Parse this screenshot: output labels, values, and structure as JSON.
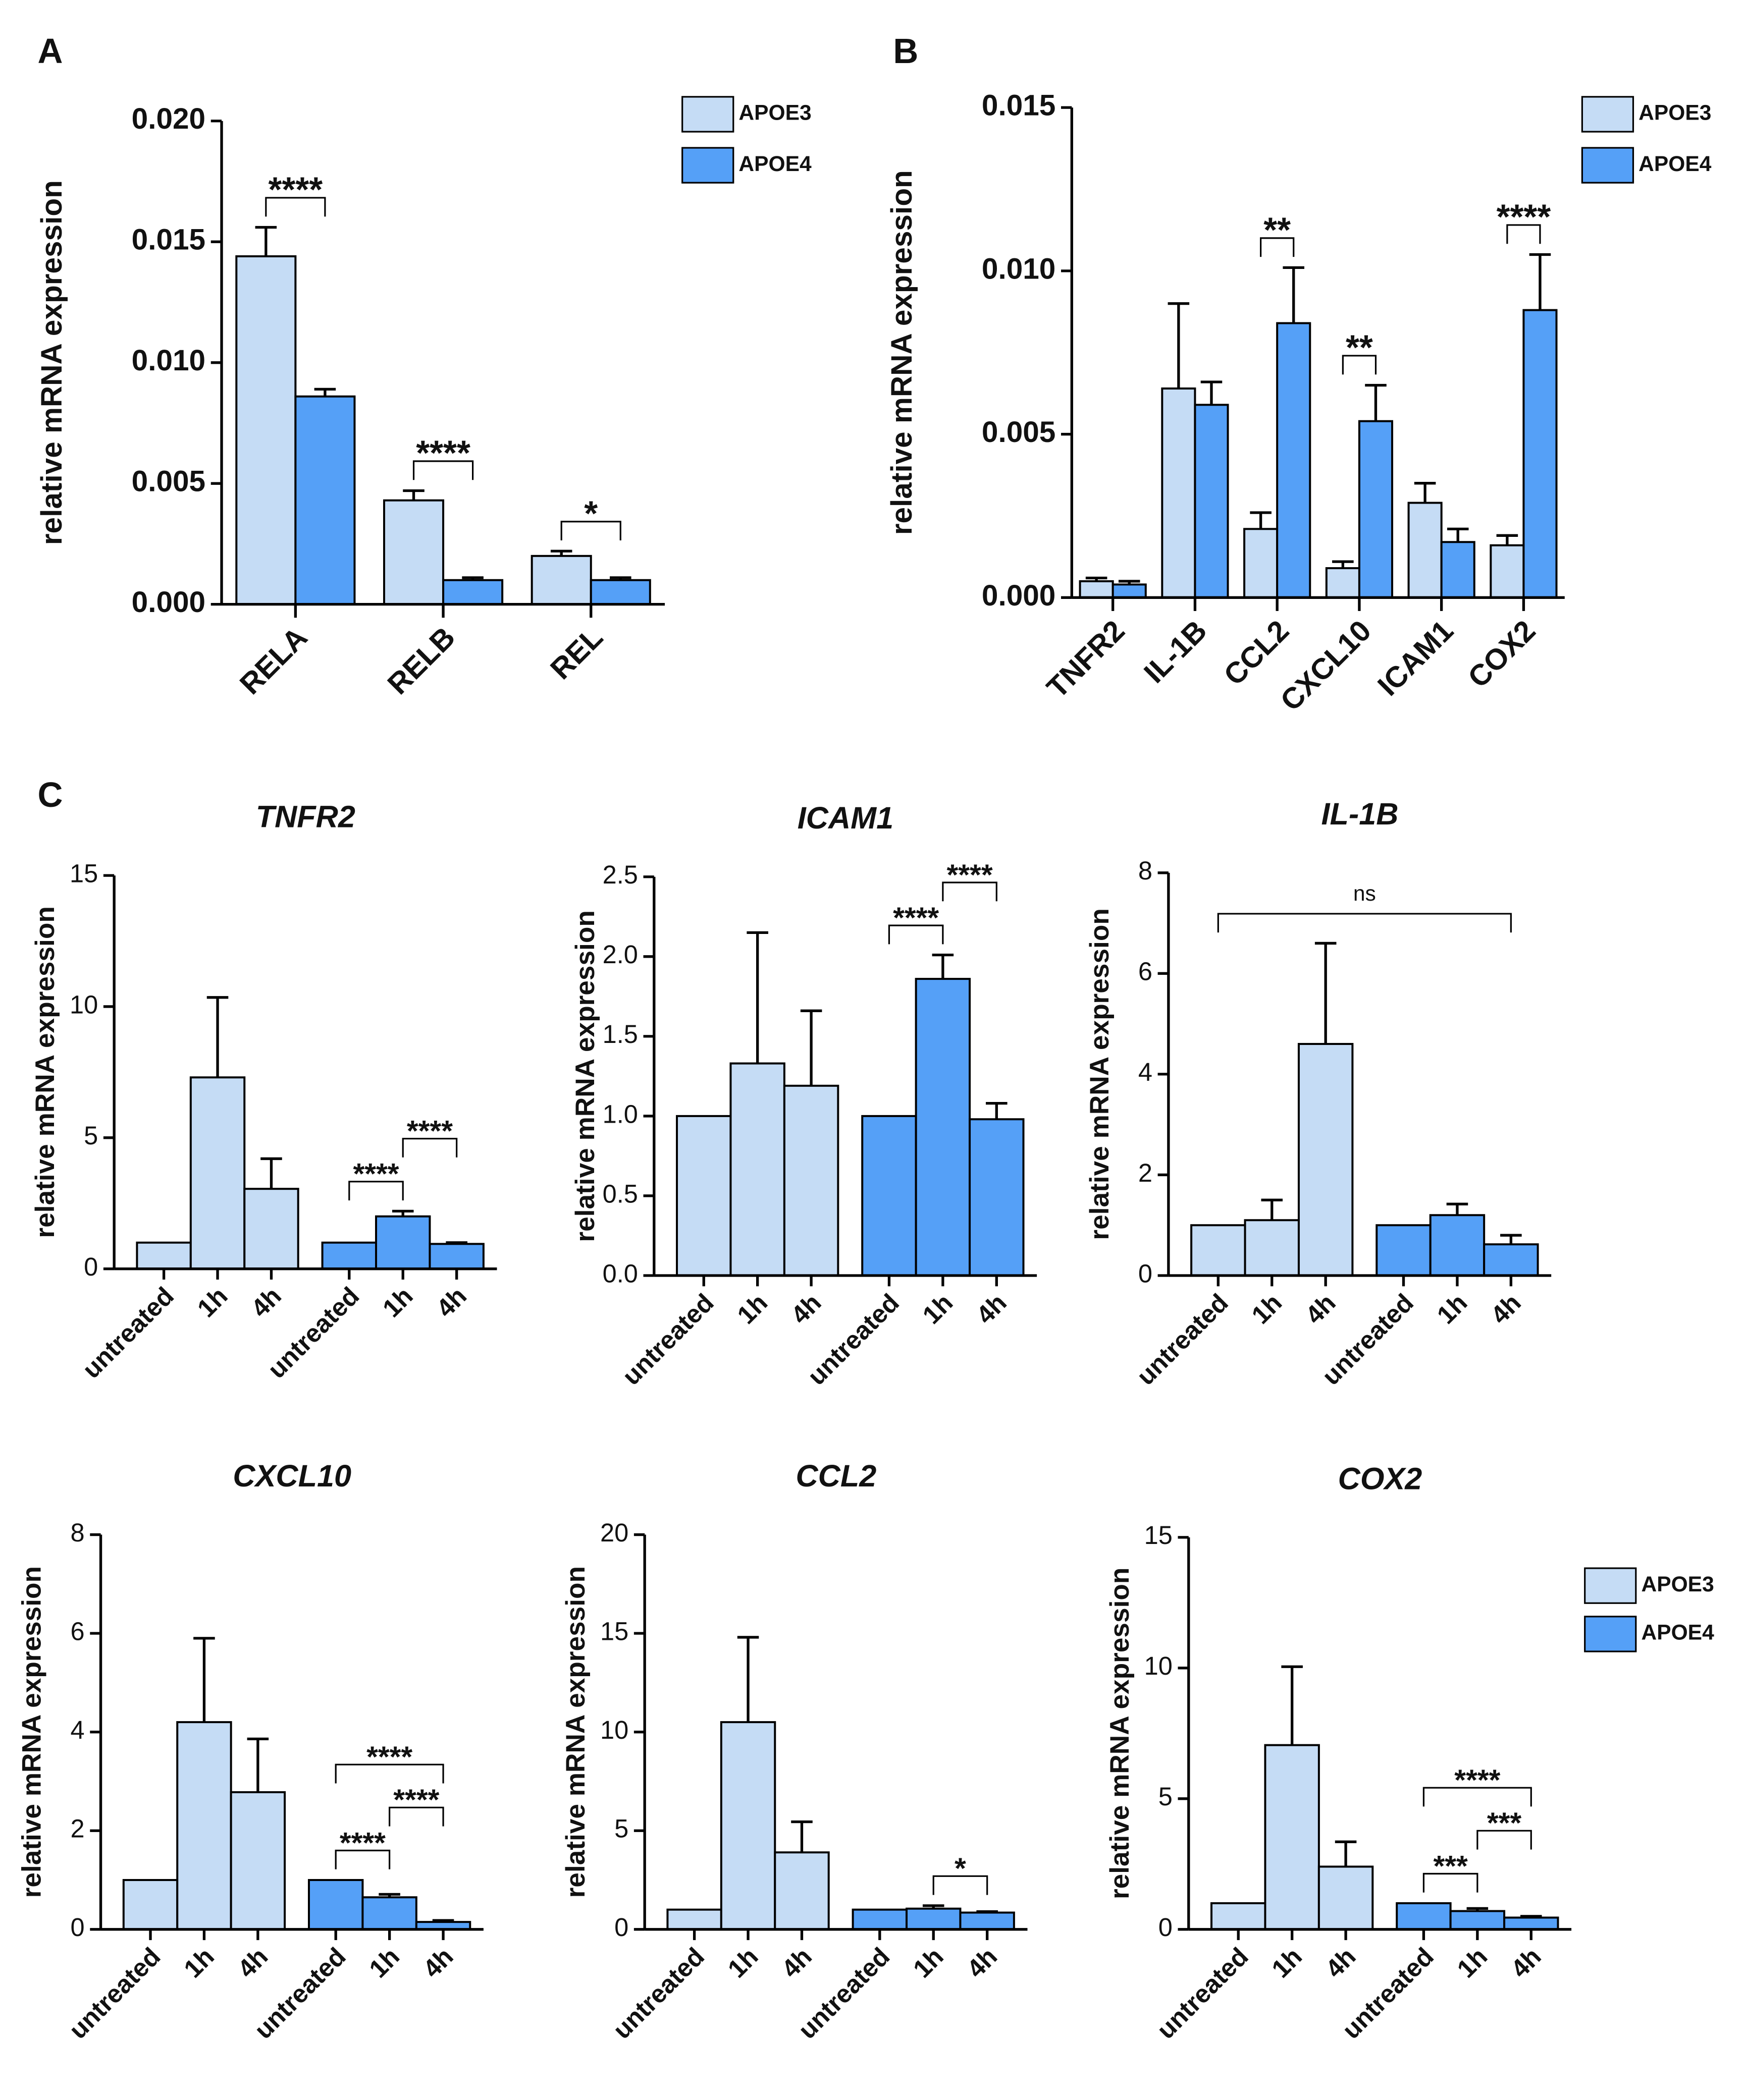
{
  "chart_data": [
    {
      "type": "grouped",
      "panel": "A",
      "ylabel": "relative mRNA expression",
      "categories": [
        "RELA",
        "RELB",
        "REL"
      ],
      "series": [
        {
          "name": "APOE3",
          "color": "#c5dcf5",
          "values": [
            0.0144,
            0.0043,
            0.002
          ],
          "errors": [
            0.0012,
            0.0004,
            0.0002
          ]
        },
        {
          "name": "APOE4",
          "color": "#55a0f7",
          "values": [
            0.0086,
            0.001,
            0.001
          ],
          "errors": [
            0.0003,
            0.0001,
            0.0001
          ]
        }
      ],
      "ylim": [
        0,
        0.02
      ],
      "yticks": [
        {
          "value": 0,
          "label": "0.000"
        },
        {
          "value": 0.005,
          "label": "0.005"
        },
        {
          "value": 0.01,
          "label": "0.010"
        },
        {
          "value": 0.015,
          "label": "0.015"
        },
        {
          "value": 0.02,
          "label": "0.020"
        }
      ],
      "annotations": [
        {
          "label": "****",
          "between": [
            0,
            1
          ]
        },
        {
          "label": "****",
          "between": [
            2,
            3
          ]
        },
        {
          "label": "*",
          "between": [
            4,
            5
          ]
        }
      ]
    },
    {
      "type": "grouped",
      "panel": "B",
      "ylabel": "relative mRNA expression",
      "categories": [
        "TNFR2",
        "IL-1B",
        "CCL2",
        "CXCL10",
        "ICAM1",
        "COX2"
      ],
      "series": [
        {
          "name": "APOE3",
          "color": "#c5dcf5",
          "values": [
            0.0005,
            0.0064,
            0.0021,
            0.0009,
            0.0029,
            0.0016
          ],
          "errors": [
            0.0001,
            0.0026,
            0.0005,
            0.0002,
            0.0006,
            0.0003
          ]
        },
        {
          "name": "APOE4",
          "color": "#55a0f7",
          "values": [
            0.0004,
            0.0059,
            0.0084,
            0.0054,
            0.0017,
            0.0088
          ],
          "errors": [
            0.0001,
            0.0007,
            0.0017,
            0.0011,
            0.0004,
            0.0017
          ]
        }
      ],
      "ylim": [
        0,
        0.015
      ],
      "yticks": [
        {
          "value": 0,
          "label": "0.000"
        },
        {
          "value": 0.005,
          "label": "0.005"
        },
        {
          "value": 0.01,
          "label": "0.010"
        },
        {
          "value": 0.015,
          "label": "0.015"
        }
      ],
      "annotations": [
        {
          "label": "**",
          "between": [
            4,
            5
          ]
        },
        {
          "label": "**",
          "between": [
            6,
            7
          ]
        },
        {
          "label": "****",
          "between": [
            10,
            11
          ]
        }
      ]
    },
    {
      "type": "bar",
      "panel": "C",
      "title": "TNFR2",
      "ylabel": "relative mRNA expression",
      "categories": [
        "untreated",
        "1h",
        "4h",
        "untreated",
        "1h",
        "4h"
      ],
      "values": [
        1,
        7.3,
        3.05,
        1,
        2.0,
        0.95
      ],
      "errors": [
        0,
        3.05,
        1.15,
        0,
        0.2,
        0.05
      ],
      "colors": [
        "#c5dcf5",
        "#c5dcf5",
        "#c5dcf5",
        "#55a0f7",
        "#55a0f7",
        "#55a0f7"
      ],
      "ylim": [
        0,
        15
      ],
      "yticks": [
        0,
        5,
        10,
        15
      ],
      "annotations": [
        {
          "label": "****",
          "between": [
            3,
            4
          ]
        },
        {
          "label": "****",
          "between": [
            4,
            5
          ]
        }
      ]
    },
    {
      "type": "bar",
      "title": "ICAM1",
      "ylabel": "relative mRNA expression",
      "categories": [
        "untreated",
        "1h",
        "4h",
        "untreated",
        "1h",
        "4h"
      ],
      "values": [
        1,
        1.33,
        1.19,
        1,
        1.86,
        0.98
      ],
      "errors": [
        0,
        0.82,
        0.47,
        0,
        0.15,
        0.1
      ],
      "colors": [
        "#c5dcf5",
        "#c5dcf5",
        "#c5dcf5",
        "#55a0f7",
        "#55a0f7",
        "#55a0f7"
      ],
      "ylim": [
        0,
        2.5
      ],
      "yticks": [
        {
          "value": 0,
          "label": "0.0"
        },
        0.5,
        {
          "value": 1,
          "label": "1.0"
        },
        1.5,
        {
          "value": 2,
          "label": "2.0"
        },
        2.5
      ],
      "annotations": [
        {
          "label": "****",
          "between": [
            3,
            4
          ]
        },
        {
          "label": "****",
          "between": [
            4,
            5
          ]
        }
      ]
    },
    {
      "type": "bar",
      "title": "IL-1B",
      "ylabel": "relative mRNA expression",
      "categories": [
        "untreated",
        "1h",
        "4h",
        "untreated",
        "1h",
        "4h"
      ],
      "values": [
        1,
        1.1,
        4.6,
        1,
        1.2,
        0.62
      ],
      "errors": [
        0,
        0.4,
        2.0,
        0,
        0.22,
        0.18
      ],
      "colors": [
        "#c5dcf5",
        "#c5dcf5",
        "#c5dcf5",
        "#55a0f7",
        "#55a0f7",
        "#55a0f7"
      ],
      "ylim": [
        0,
        8
      ],
      "yticks": [
        0,
        2,
        4,
        6,
        8
      ],
      "annotations": [
        {
          "label": "ns",
          "between": [
            0,
            5
          ]
        }
      ]
    },
    {
      "type": "bar",
      "title": "CXCL10",
      "ylabel": "relative mRNA expression",
      "categories": [
        "untreated",
        "1h",
        "4h",
        "untreated",
        "1h",
        "4h"
      ],
      "values": [
        1,
        4.2,
        2.78,
        1,
        0.65,
        0.15
      ],
      "errors": [
        0,
        1.7,
        1.08,
        0,
        0.06,
        0.03
      ],
      "colors": [
        "#c5dcf5",
        "#c5dcf5",
        "#c5dcf5",
        "#55a0f7",
        "#55a0f7",
        "#55a0f7"
      ],
      "ylim": [
        0,
        8
      ],
      "yticks": [
        0,
        2,
        4,
        6,
        8
      ],
      "annotations": [
        {
          "label": "****",
          "between": [
            3,
            4
          ]
        },
        {
          "label": "****",
          "between": [
            4,
            5
          ]
        },
        {
          "label": "****",
          "between": [
            3,
            5
          ]
        }
      ]
    },
    {
      "type": "bar",
      "title": "CCL2",
      "ylabel": "relative mRNA expression",
      "categories": [
        "untreated",
        "1h",
        "4h",
        "untreated",
        "1h",
        "4h"
      ],
      "values": [
        1,
        10.5,
        3.9,
        1,
        1.05,
        0.85
      ],
      "errors": [
        0,
        4.3,
        1.55,
        0,
        0.15,
        0.05
      ],
      "colors": [
        "#c5dcf5",
        "#c5dcf5",
        "#c5dcf5",
        "#55a0f7",
        "#55a0f7",
        "#55a0f7"
      ],
      "ylim": [
        0,
        20
      ],
      "yticks": [
        0,
        5,
        10,
        15,
        20
      ],
      "annotations": [
        {
          "label": "*",
          "between": [
            4,
            5
          ]
        }
      ]
    },
    {
      "type": "bar",
      "title": "COX2",
      "ylabel": "relative mRNA expression",
      "categories": [
        "untreated",
        "1h",
        "4h",
        "untreated",
        "1h",
        "4h"
      ],
      "values": [
        1,
        7.05,
        2.4,
        1,
        0.7,
        0.45
      ],
      "errors": [
        0,
        3.0,
        0.95,
        0,
        0.1,
        0.05
      ],
      "colors": [
        "#c5dcf5",
        "#c5dcf5",
        "#c5dcf5",
        "#55a0f7",
        "#55a0f7",
        "#55a0f7"
      ],
      "ylim": [
        0,
        15
      ],
      "yticks": [
        0,
        5,
        10,
        15
      ],
      "legend": [
        {
          "name": "APOE3",
          "color": "#c5dcf5"
        },
        {
          "name": "APOE4",
          "color": "#55a0f7"
        }
      ],
      "annotations": [
        {
          "label": "***",
          "between": [
            3,
            4
          ]
        },
        {
          "label": "***",
          "between": [
            4,
            5
          ]
        },
        {
          "label": "****",
          "between": [
            3,
            5
          ]
        }
      ]
    }
  ]
}
